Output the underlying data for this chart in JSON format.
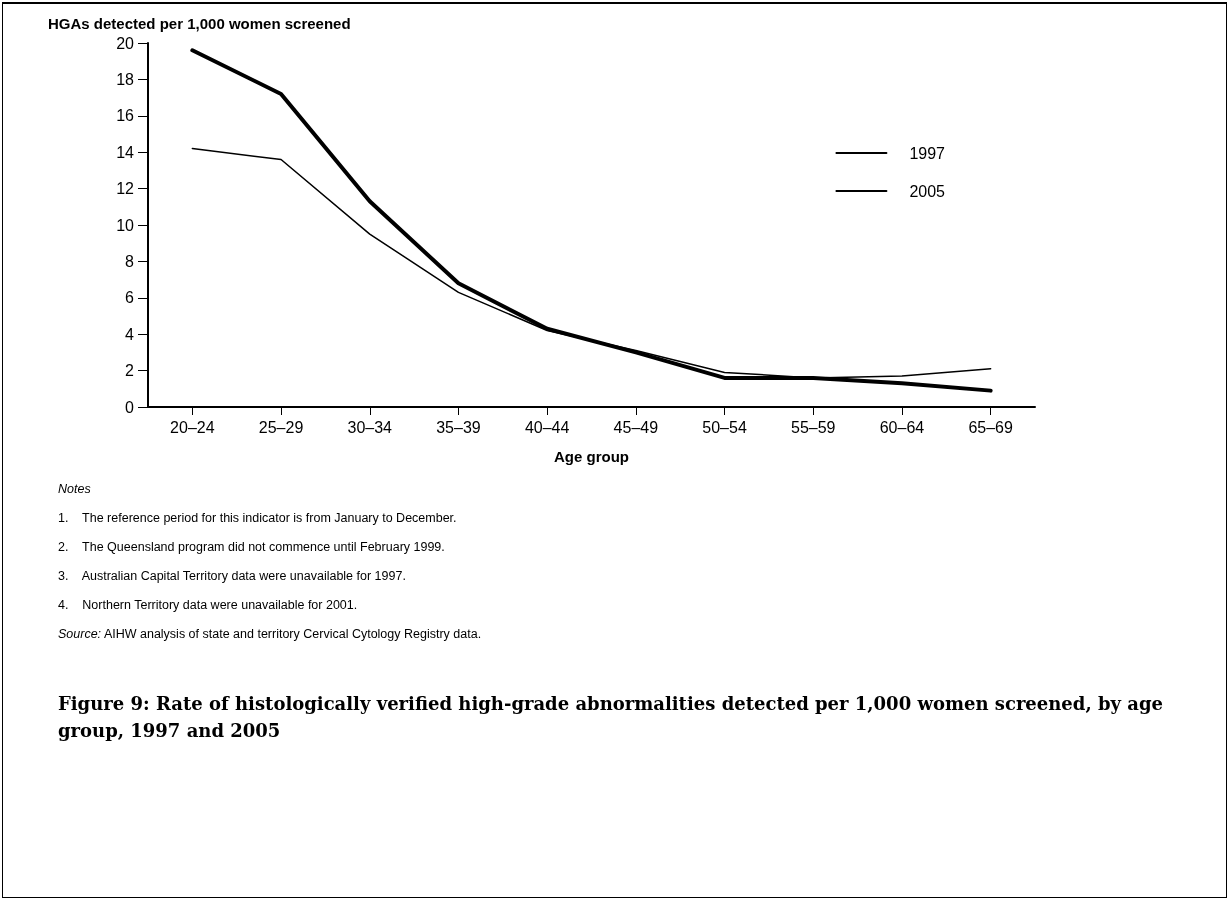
{
  "chart_data": {
    "type": "line",
    "title": "Figure 9: Rate of histologically verified high-grade abnormalities detected per 1,000 women screened, by age group,  1997 and 2005",
    "ylabel": "HGAs detected per 1,000 women screened",
    "xlabel": "Age group",
    "categories": [
      "20–24",
      "25–29",
      "30–34",
      "35–39",
      "40–44",
      "45–49",
      "50–54",
      "55–59",
      "60–64",
      "65–69"
    ],
    "series": [
      {
        "name": "1997",
        "color": "#000000",
        "values": [
          14.2,
          13.6,
          9.5,
          6.3,
          4.2,
          3.1,
          1.9,
          1.6,
          1.7,
          2.1
        ]
      },
      {
        "name": "2005",
        "color": "#000000",
        "values": [
          19.6,
          17.2,
          11.3,
          6.8,
          4.3,
          3.0,
          1.6,
          1.6,
          1.3,
          0.9
        ]
      }
    ],
    "ylim": [
      0,
      20
    ],
    "yticks": [
      0,
      2,
      4,
      6,
      8,
      10,
      12,
      14,
      16,
      18,
      20
    ],
    "grid": false,
    "legend": "top right",
    "marker": "none",
    "line_style": "solid",
    "annotations": [
      "Notes",
      "1.    The reference period for this indicator is from January to December.",
      "2.    The Queensland program did not commence until February 1999.",
      "3.    Australian Capital Territory data were unavailable for 1997.",
      "4.    Northern Territory data were unavailable for 2001.",
      "Source: AIHW analysis of state and territory Cervical Cytology Registry data."
    ]
  }
}
